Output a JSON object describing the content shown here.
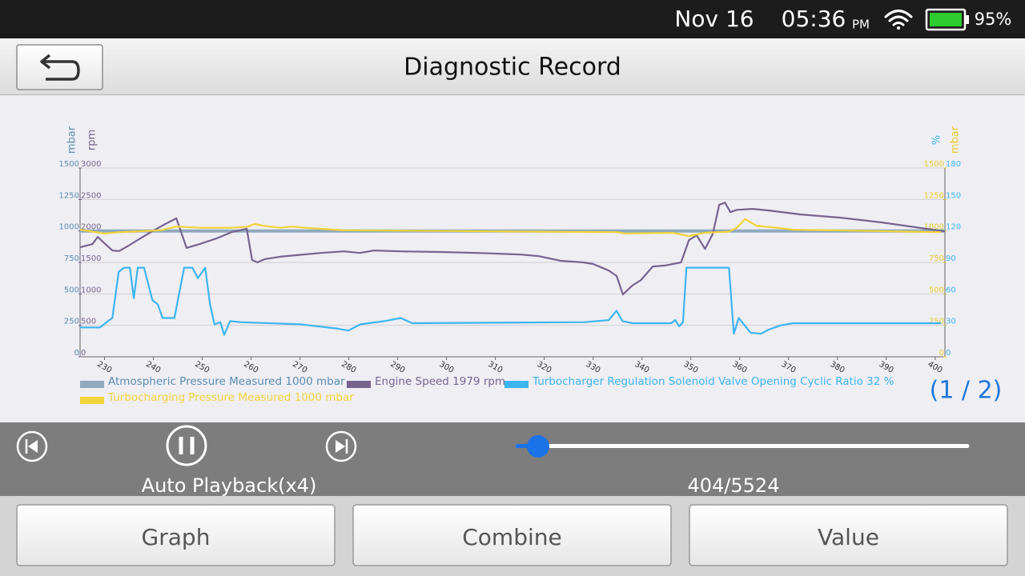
{
  "status_bar": {
    "date": "Nov 16",
    "time": "05:36",
    "meridiem": "PM",
    "battery": "95%"
  },
  "header": {
    "title": "Diagnostic Record"
  },
  "chart_data": {
    "type": "line",
    "xlim": [
      225,
      402
    ],
    "xticks": [
      230,
      240,
      250,
      260,
      270,
      280,
      290,
      300,
      310,
      320,
      330,
      340,
      350,
      360,
      370,
      380,
      390,
      400
    ],
    "grid": true,
    "axes": [
      {
        "label": "mbar",
        "side": "left",
        "color": "#5b8db0",
        "ylim": [
          0,
          1500
        ],
        "yticks": [
          0,
          250,
          500,
          750,
          1000,
          1250,
          1500
        ]
      },
      {
        "label": "rpm",
        "side": "left",
        "color": "#76648f",
        "ylim": [
          0,
          3000
        ],
        "yticks": [
          0,
          500,
          1000,
          1500,
          2000,
          2500,
          3000
        ]
      },
      {
        "label": "%",
        "side": "right",
        "color": "#3db5ef",
        "ylim": [
          0,
          180
        ],
        "yticks": [
          0,
          30,
          60,
          90,
          120,
          150,
          180
        ]
      },
      {
        "label": "mbar",
        "side": "right",
        "color": "#e8cc2c",
        "ylim": [
          0,
          1500
        ],
        "yticks": [
          0,
          250,
          500,
          750,
          1000,
          1250,
          1500
        ]
      }
    ],
    "series": [
      {
        "name": "Atmospheric Pressure Measured 1000 mbar",
        "color": "#8fa9bd",
        "axis": 0,
        "x": [
          225,
          402
        ],
        "values": [
          1000,
          1000
        ]
      },
      {
        "name": "Engine Speed 1979 rpm",
        "color": "#76648f",
        "axis": 1,
        "x": [
          225,
          227.5,
          228.6,
          229.9,
          231.6,
          233,
          235,
          237.3,
          239.8,
          242.2,
          244.7,
          246.8,
          249.6,
          252.9,
          256,
          259.1,
          260.2,
          261.3,
          262.7,
          265.9,
          274.2,
          279,
          282.3,
          285.2,
          290.6,
          298.8,
          306.5,
          315.2,
          318.8,
          323.4,
          328,
          330,
          333.2,
          334.8,
          336.1,
          338,
          339.8,
          342.2,
          344.7,
          348,
          349.6,
          351.2,
          352.9,
          354.5,
          355.8,
          357,
          358.1,
          359.4,
          362.7,
          366,
          372.5,
          380.7,
          389,
          397.2,
          402
        ],
        "values": [
          1740,
          1790,
          1905,
          1810,
          1690,
          1680,
          1770,
          1880,
          1995,
          2100,
          2200,
          1730,
          1795,
          1880,
          1980,
          2035,
          1540,
          1500,
          1550,
          1590,
          1650,
          1675,
          1650,
          1690,
          1675,
          1665,
          1650,
          1625,
          1600,
          1525,
          1500,
          1475,
          1370,
          1285,
          990,
          1130,
          1220,
          1435,
          1450,
          1500,
          1855,
          1930,
          1715,
          1955,
          2415,
          2450,
          2300,
          2335,
          2350,
          2325,
          2262,
          2210,
          2135,
          2045,
          1995
        ]
      },
      {
        "name": "Turbocharger Regulation Solenoid Valve Opening Cyclic Ratio 32 %",
        "color": "#3db5ef",
        "axis": 2,
        "x": [
          225,
          229.1,
          230.7,
          231.6,
          232.9,
          234,
          235.2,
          236,
          236.8,
          238.1,
          239.8,
          240.9,
          241.9,
          244.3,
          246.3,
          248,
          249.1,
          250.6,
          251.6,
          252.5,
          253.7,
          254.5,
          255.7,
          257.8,
          270.1,
          277.5,
          279.9,
          282.4,
          287.3,
          290.6,
          293,
          328.3,
          333.2,
          334.8,
          336,
          338.1,
          346,
          346.8,
          347.6,
          348.4,
          349.1,
          357.8,
          358.8,
          359.8,
          362.2,
          364.3,
          366,
          368.4,
          370.9,
          401.2
        ],
        "values": [
          28,
          28,
          34,
          37,
          81,
          85,
          85,
          56,
          85,
          85,
          54,
          50,
          37,
          37,
          85,
          85,
          75,
          85,
          50,
          31,
          33,
          21,
          34,
          33,
          31,
          27,
          25,
          31,
          34,
          37,
          32,
          33,
          35,
          44,
          34,
          32,
          32,
          35,
          29,
          33,
          85,
          85,
          22,
          37,
          23,
          22,
          26,
          30,
          32,
          32
        ]
      },
      {
        "name": "Turbocharging Pressure Measured 1000 mbar",
        "color": "#f0d43a",
        "axis": 3,
        "x": [
          225,
          229.9,
          233.2,
          241.4,
          244.7,
          249.6,
          256.1,
          259.4,
          260.7,
          262.7,
          266,
          268.4,
          270.9,
          279,
          334.8,
          336.5,
          346.3,
          349.6,
          352.9,
          357.8,
          359.4,
          361.1,
          363.5,
          367.6,
          370.9,
          401.2
        ],
        "values": [
          1010,
          980,
          990,
          1005,
          1035,
          1025,
          1025,
          1035,
          1055,
          1040,
          1025,
          1035,
          1025,
          1005,
          990,
          980,
          985,
          960,
          985,
          995,
          1025,
          1095,
          1040,
          1025,
          1010,
          990
        ]
      }
    ]
  },
  "page_indicator": "(1 / 2)",
  "playback": {
    "mode": "Auto Playback(x4)",
    "counter": "404/5524"
  },
  "buttons": [
    "Graph",
    "Combine",
    "Value"
  ]
}
